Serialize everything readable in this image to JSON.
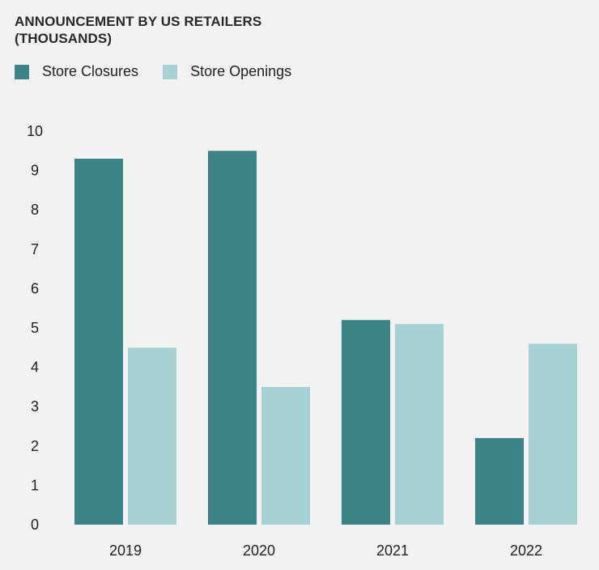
{
  "title_lines": [
    "ANNOUNCEMENT BY US RETAILERS",
    "(THOUSANDS)"
  ],
  "colors": {
    "closures": "#3a8487",
    "openings": "#a6d2d4",
    "background": "#f2f2f2"
  },
  "chart_data": {
    "type": "bar",
    "title": "ANNOUNCEMENT BY US RETAILERS (THOUSANDS)",
    "categories": [
      "2019",
      "2020",
      "2021",
      "2022"
    ],
    "series": [
      {
        "name": "Store Closures",
        "values": [
          9.3,
          9.5,
          5.2,
          2.2
        ]
      },
      {
        "name": "Store Openings",
        "values": [
          4.5,
          3.5,
          5.1,
          4.6
        ]
      }
    ],
    "ylim": [
      0,
      10
    ],
    "yticks": [
      "0",
      "1",
      "2",
      "3",
      "4",
      "5",
      "6",
      "7",
      "8",
      "9",
      "10"
    ],
    "grid": false,
    "legend_position": "top-left"
  }
}
